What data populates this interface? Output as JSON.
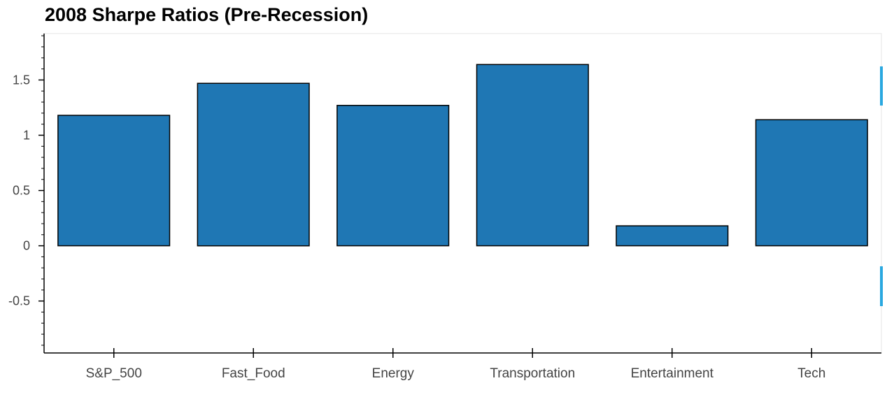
{
  "chart_data": {
    "type": "bar",
    "title": "2008 Sharpe Ratios (Pre-Recession)",
    "categories": [
      "S&P_500",
      "Fast_Food",
      "Energy",
      "Transportation",
      "Entertainment",
      "Tech"
    ],
    "values": [
      1.18,
      1.47,
      1.27,
      1.64,
      0.18,
      1.14
    ],
    "ylim": [
      -0.97,
      1.92
    ],
    "yticks": [
      -0.5,
      0,
      0.5,
      1,
      1.5
    ],
    "ytick_labels": [
      "-0.5",
      "0",
      "0.5",
      "1",
      "1.5"
    ],
    "xlabel": "",
    "ylabel": "",
    "grid": false,
    "legend": "none",
    "bar_color": "#1f77b4",
    "edge_color": "#000000"
  }
}
